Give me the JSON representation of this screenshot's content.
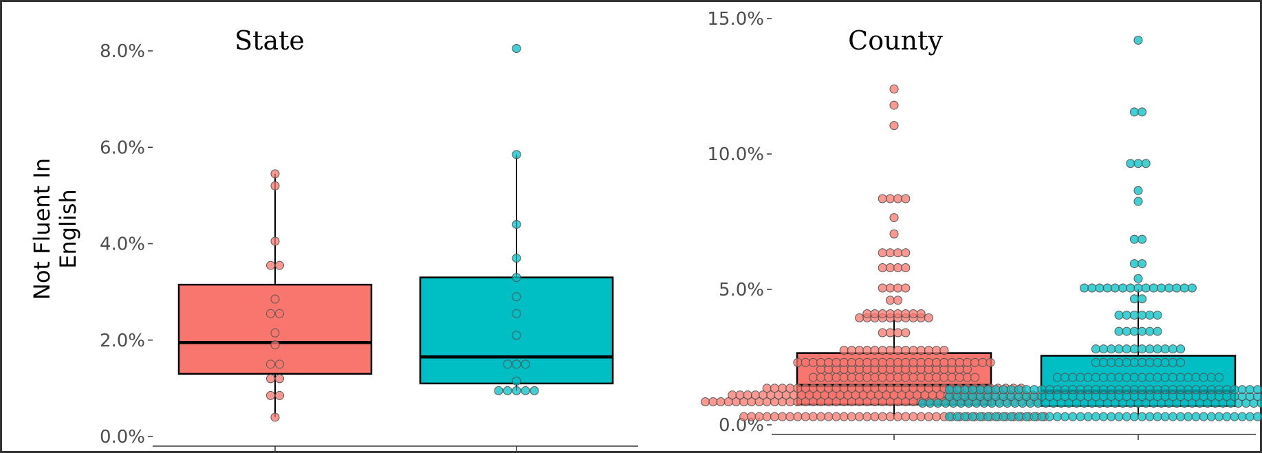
{
  "figure": {
    "ylabel_lines": [
      "Not Fluent In",
      "English"
    ]
  },
  "colors": {
    "group1_fill": "#F8766D",
    "group2_fill": "#00BFC4",
    "outline": "#000000",
    "axis": "#333333",
    "tick_text": "#4d4d4d"
  },
  "chart_data": [
    {
      "type": "box",
      "title": "State",
      "xlabel": "",
      "ylabel": "Not Fluent In English",
      "y_format": "percent",
      "ylim": [
        0,
        8.2
      ],
      "yticks": [
        0,
        2,
        4,
        6,
        8
      ],
      "ytick_labels": [
        "0.0%",
        "2.0%",
        "4.0%",
        "6.0%",
        "8.0%"
      ],
      "grid": false,
      "legend": "none",
      "series": [
        {
          "color": "#F8766D",
          "box": {
            "q1": 1.3,
            "median": 1.95,
            "q3": 3.15,
            "whisker_low": 0.4,
            "whisker_high": 5.45
          },
          "points": [
            0.4,
            0.85,
            0.85,
            1.2,
            1.2,
            1.5,
            1.5,
            1.9,
            2.15,
            2.55,
            2.55,
            2.85,
            3.55,
            3.55,
            4.05,
            5.2,
            5.45
          ]
        },
        {
          "color": "#00BFC4",
          "box": {
            "q1": 1.1,
            "median": 1.65,
            "q3": 3.3,
            "whisker_low": 0.95,
            "whisker_high": 5.85
          },
          "points": [
            0.95,
            0.95,
            0.95,
            0.95,
            0.95,
            1.15,
            1.5,
            1.5,
            1.5,
            2.1,
            2.55,
            2.9,
            3.3,
            3.7,
            4.4,
            5.85,
            8.05
          ]
        }
      ]
    },
    {
      "type": "box",
      "title": "County",
      "xlabel": "",
      "ylabel": "",
      "y_format": "percent",
      "ylim": [
        0,
        15.0
      ],
      "yticks": [
        0,
        5,
        10,
        15
      ],
      "ytick_labels": [
        "0.0%",
        "5.0%",
        "10.0%",
        "15.0%"
      ],
      "grid": false,
      "legend": "none",
      "series": [
        {
          "color": "#F8766D",
          "box": {
            "q1": 0.75,
            "median": 1.45,
            "q3": 2.65,
            "whisker_low": 0.3,
            "whisker_high": 4.1
          },
          "points": [
            0.3,
            0.3,
            0.3,
            0.3,
            0.3,
            0.3,
            0.3,
            0.3,
            0.3,
            0.3,
            0.3,
            0.3,
            0.3,
            0.3,
            0.3,
            0.3,
            0.3,
            0.3,
            0.3,
            0.3,
            0.3,
            0.3,
            0.3,
            0.3,
            0.3,
            0.3,
            0.3,
            0.3,
            0.3,
            0.3,
            0.3,
            0.3,
            0.3,
            0.3,
            0.3,
            0.3,
            0.3,
            0.3,
            0.3,
            0.3,
            0.85,
            0.85,
            0.85,
            0.85,
            0.85,
            0.85,
            0.85,
            0.85,
            0.85,
            0.85,
            0.85,
            0.85,
            0.85,
            0.85,
            0.85,
            0.85,
            0.85,
            0.85,
            0.85,
            0.85,
            0.85,
            0.85,
            0.85,
            0.85,
            0.85,
            0.85,
            0.85,
            0.85,
            0.85,
            0.85,
            0.85,
            0.85,
            0.85,
            0.85,
            0.85,
            0.85,
            0.85,
            0.85,
            0.85,
            0.85,
            0.85,
            0.85,
            0.85,
            0.85,
            0.85,
            0.85,
            0.85,
            0.85,
            0.85,
            0.85,
            1.1,
            1.1,
            1.1,
            1.1,
            1.1,
            1.1,
            1.1,
            1.1,
            1.1,
            1.1,
            1.1,
            1.1,
            1.1,
            1.1,
            1.1,
            1.1,
            1.1,
            1.1,
            1.1,
            1.1,
            1.1,
            1.1,
            1.1,
            1.1,
            1.1,
            1.1,
            1.1,
            1.1,
            1.1,
            1.1,
            1.1,
            1.1,
            1.1,
            1.1,
            1.1,
            1.1,
            1.1,
            1.1,
            1.1,
            1.1,
            1.1,
            1.1,
            1.1,
            1.35,
            1.35,
            1.35,
            1.35,
            1.35,
            1.35,
            1.35,
            1.35,
            1.35,
            1.35,
            1.35,
            1.35,
            1.35,
            1.35,
            1.35,
            1.35,
            1.35,
            1.35,
            1.35,
            1.35,
            1.35,
            1.35,
            1.35,
            1.35,
            1.35,
            1.35,
            1.35,
            1.35,
            1.35,
            1.35,
            1.35,
            1.35,
            1.35,
            1.35,
            1.75,
            1.75,
            1.75,
            1.75,
            1.75,
            1.75,
            1.75,
            1.75,
            1.75,
            1.75,
            1.75,
            1.75,
            1.75,
            1.75,
            1.75,
            1.75,
            1.75,
            1.75,
            1.75,
            1.75,
            1.75,
            1.75,
            2.05,
            2.05,
            2.05,
            2.05,
            2.05,
            2.05,
            2.05,
            2.05,
            2.05,
            2.05,
            2.05,
            2.05,
            2.05,
            2.05,
            2.05,
            2.05,
            2.05,
            2.05,
            2.05,
            2.05,
            2.3,
            2.3,
            2.3,
            2.3,
            2.3,
            2.3,
            2.3,
            2.3,
            2.3,
            2.3,
            2.3,
            2.3,
            2.3,
            2.3,
            2.3,
            2.3,
            2.3,
            2.3,
            2.3,
            2.3,
            2.3,
            2.3,
            2.3,
            2.3,
            2.3,
            2.3,
            2.75,
            2.75,
            2.75,
            2.75,
            2.75,
            2.75,
            2.75,
            2.75,
            2.75,
            2.75,
            2.75,
            2.75,
            2.75,
            2.75,
            3.4,
            3.4,
            3.4,
            3.4,
            3.95,
            3.95,
            3.95,
            3.95,
            3.95,
            3.95,
            3.95,
            3.95,
            3.95,
            3.95,
            4.1,
            4.1,
            4.1,
            4.1,
            4.1,
            4.1,
            4.1,
            4.1,
            4.6,
            4.6,
            5.05,
            5.05,
            5.05,
            5.05,
            5.8,
            5.8,
            5.8,
            5.8,
            6.35,
            6.35,
            6.35,
            6.35,
            7.05,
            7.65,
            8.35,
            8.35,
            8.35,
            8.35,
            11.05,
            11.8,
            12.4
          ]
        },
        {
          "color": "#00BFC4",
          "box": {
            "q1": 0.7,
            "median": 1.25,
            "q3": 2.55,
            "whisker_low": 0.3,
            "whisker_high": 5.0
          },
          "points": [
            0.3,
            0.3,
            0.3,
            0.3,
            0.3,
            0.3,
            0.3,
            0.3,
            0.3,
            0.3,
            0.3,
            0.3,
            0.3,
            0.3,
            0.3,
            0.3,
            0.3,
            0.3,
            0.3,
            0.3,
            0.3,
            0.3,
            0.3,
            0.3,
            0.3,
            0.3,
            0.3,
            0.3,
            0.3,
            0.3,
            0.3,
            0.3,
            0.3,
            0.3,
            0.3,
            0.3,
            0.3,
            0.3,
            0.3,
            0.3,
            0.3,
            0.3,
            0.3,
            0.3,
            0.3,
            0.3,
            0.3,
            0.3,
            0.3,
            0.3,
            0.8,
            0.8,
            0.8,
            0.8,
            0.8,
            0.8,
            0.8,
            0.8,
            0.8,
            0.8,
            0.8,
            0.8,
            0.8,
            0.8,
            0.8,
            0.8,
            0.8,
            0.8,
            0.8,
            0.8,
            0.8,
            0.8,
            0.8,
            0.8,
            0.8,
            0.8,
            0.8,
            0.8,
            0.8,
            0.8,
            0.8,
            0.8,
            0.8,
            0.8,
            0.8,
            0.8,
            0.8,
            0.8,
            0.8,
            0.8,
            0.8,
            0.8,
            0.8,
            0.8,
            0.8,
            0.8,
            0.8,
            0.8,
            0.8,
            0.8,
            0.8,
            0.8,
            0.8,
            0.8,
            0.8,
            0.8,
            0.8,
            1.05,
            1.05,
            1.05,
            1.05,
            1.05,
            1.05,
            1.05,
            1.05,
            1.05,
            1.05,
            1.05,
            1.05,
            1.05,
            1.05,
            1.05,
            1.05,
            1.05,
            1.05,
            1.05,
            1.05,
            1.05,
            1.05,
            1.05,
            1.05,
            1.05,
            1.05,
            1.05,
            1.05,
            1.05,
            1.05,
            1.05,
            1.05,
            1.05,
            1.05,
            1.05,
            1.05,
            1.05,
            1.05,
            1.05,
            1.05,
            1.05,
            1.05,
            1.05,
            1.05,
            1.05,
            1.05,
            1.05,
            1.05,
            1.05,
            1.05,
            1.3,
            1.3,
            1.3,
            1.3,
            1.3,
            1.3,
            1.3,
            1.3,
            1.3,
            1.3,
            1.3,
            1.3,
            1.3,
            1.3,
            1.3,
            1.3,
            1.3,
            1.3,
            1.3,
            1.3,
            1.3,
            1.3,
            1.3,
            1.3,
            1.3,
            1.3,
            1.3,
            1.3,
            1.3,
            1.3,
            1.3,
            1.3,
            1.3,
            1.3,
            1.3,
            1.3,
            1.3,
            1.3,
            1.3,
            1.3,
            1.3,
            1.3,
            1.3,
            1.3,
            1.3,
            1.3,
            1.3,
            1.3,
            1.3,
            1.3,
            1.75,
            1.75,
            1.75,
            1.75,
            1.75,
            1.75,
            1.75,
            1.75,
            1.75,
            1.75,
            1.75,
            1.75,
            1.75,
            1.75,
            1.75,
            1.75,
            1.75,
            1.75,
            1.75,
            1.75,
            1.75,
            1.75,
            2.3,
            2.3,
            2.3,
            2.3,
            2.3,
            2.3,
            2.3,
            2.3,
            2.3,
            2.3,
            2.3,
            2.3,
            2.8,
            2.8,
            2.8,
            2.8,
            2.8,
            2.8,
            2.8,
            2.8,
            2.8,
            2.8,
            2.8,
            2.8,
            3.45,
            3.45,
            3.45,
            3.45,
            3.45,
            3.45,
            4.05,
            4.05,
            4.05,
            4.05,
            4.05,
            4.05,
            4.65,
            4.65,
            5.05,
            5.05,
            5.05,
            5.05,
            5.05,
            5.05,
            5.05,
            5.05,
            5.05,
            5.05,
            5.05,
            5.05,
            5.05,
            5.05,
            5.05,
            5.4,
            5.95,
            5.95,
            6.85,
            6.85,
            8.25,
            8.65,
            9.65,
            9.65,
            9.65,
            11.55,
            11.55,
            14.2
          ]
        }
      ]
    }
  ]
}
